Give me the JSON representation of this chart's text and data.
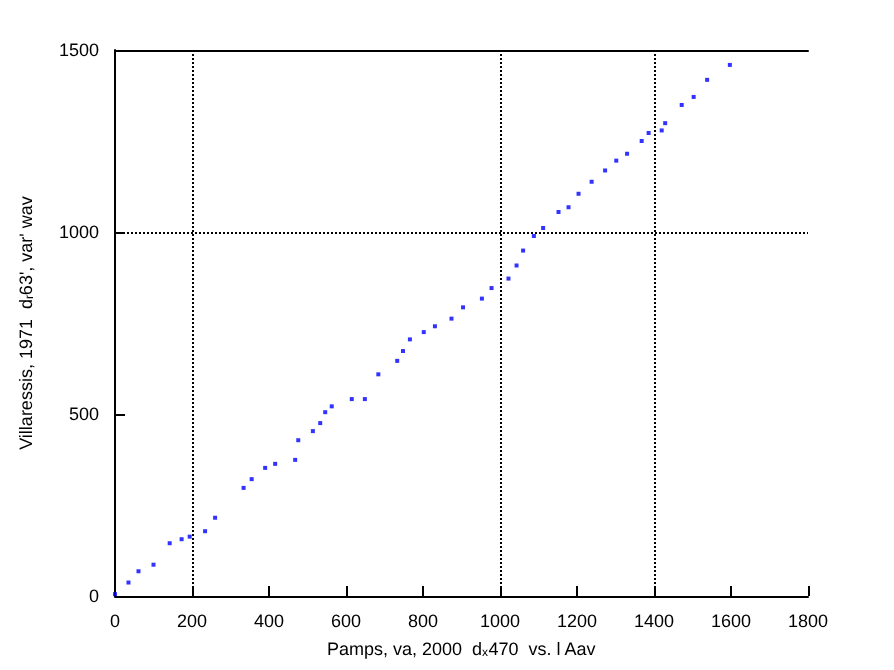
{
  "chart_data": {
    "type": "scatter",
    "xlabel": "Pamps, va, 2000  d$_{x}$470  vs. l Aav",
    "ylabel": "Villaressis, 1971  d$_{r}$63', var' wav",
    "series": [
      {
        "color": "#0000ff",
        "x": [
          0,
          35,
          61,
          100,
          142,
          173,
          194,
          234,
          260,
          334,
          355,
          390,
          416,
          468,
          476,
          514,
          533,
          546,
          563,
          615,
          649,
          684,
          733,
          748,
          766,
          802,
          831,
          874,
          904,
          953,
          978,
          1022,
          1043,
          1060,
          1088,
          1112,
          1152,
          1178,
          1204,
          1238,
          1273,
          1302,
          1330,
          1368,
          1386,
          1420,
          1429,
          1472,
          1503,
          1538,
          1597
        ],
        "values": [
          5,
          37,
          68,
          86,
          145,
          156,
          163,
          178,
          215,
          297,
          321,
          352,
          363,
          374,
          428,
          453,
          475,
          505,
          521,
          541,
          541,
          609,
          646,
          673,
          705,
          725,
          741,
          762,
          793,
          817,
          846,
          872,
          908,
          949,
          989,
          1011,
          1055,
          1068,
          1105,
          1138,
          1169,
          1196,
          1215,
          1250,
          1272,
          1279,
          1299,
          1349,
          1371,
          1418,
          1459
        ]
      }
    ],
    "marker": "square",
    "xlim": [
      0,
      1800
    ],
    "ylim": [
      0,
      1500
    ],
    "xticks": [
      0,
      200,
      400,
      600,
      800,
      1000,
      1200,
      1400,
      1600,
      1800
    ],
    "yticks": [
      0,
      500,
      1000,
      1500
    ],
    "ref_lines": [
      {
        "axis": "x",
        "value": 200,
        "color": "#000000",
        "line_style": "dotted"
      },
      {
        "axis": "x",
        "value": 1000,
        "color": "#000000",
        "line_style": "dotted"
      },
      {
        "axis": "x",
        "value": 1400,
        "color": "#000000",
        "line_style": "dotted"
      },
      {
        "axis": "y",
        "value": 1000,
        "color": "#000000",
        "line_style": "dotted"
      }
    ],
    "grid": false
  }
}
